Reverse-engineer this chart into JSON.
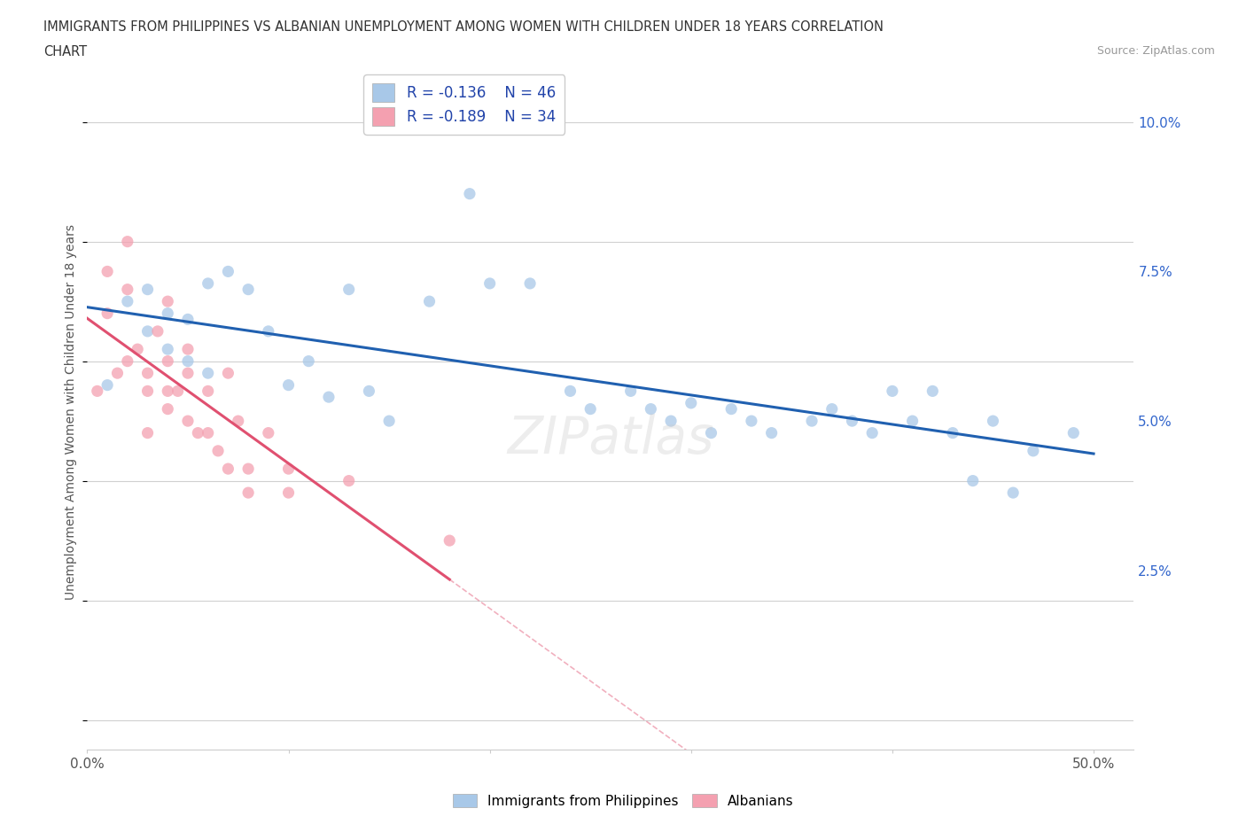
{
  "title_line1": "IMMIGRANTS FROM PHILIPPINES VS ALBANIAN UNEMPLOYMENT AMONG WOMEN WITH CHILDREN UNDER 18 YEARS CORRELATION",
  "title_line2": "CHART",
  "source": "Source: ZipAtlas.com",
  "ylabel": "Unemployment Among Women with Children Under 18 years",
  "xlim": [
    0.0,
    0.52
  ],
  "ylim": [
    -0.005,
    0.108
  ],
  "yticks": [
    0.0,
    0.025,
    0.05,
    0.075,
    0.1
  ],
  "ytick_labels_right": [
    "",
    "2.5%",
    "5.0%",
    "7.5%",
    "10.0%"
  ],
  "xtick_positions": [
    0.0,
    0.1,
    0.2,
    0.3,
    0.4,
    0.5
  ],
  "xtick_labels": [
    "0.0%",
    "",
    "",
    "",
    "",
    "50.0%"
  ],
  "grid_color": "#d0d0d0",
  "background_color": "#ffffff",
  "blue_color": "#a8c8e8",
  "pink_color": "#f4a0b0",
  "blue_line_color": "#2060b0",
  "pink_line_color": "#e05070",
  "legend_R_blue": "R = -0.136",
  "legend_N_blue": "N = 46",
  "legend_R_pink": "R = -0.189",
  "legend_N_pink": "N = 34",
  "legend_label_blue": "Immigrants from Philippines",
  "legend_label_pink": "Albanians",
  "blue_scatter_x": [
    0.01,
    0.02,
    0.03,
    0.03,
    0.04,
    0.04,
    0.05,
    0.05,
    0.06,
    0.06,
    0.07,
    0.08,
    0.09,
    0.1,
    0.11,
    0.12,
    0.13,
    0.14,
    0.15,
    0.17,
    0.19,
    0.2,
    0.22,
    0.24,
    0.25,
    0.27,
    0.28,
    0.29,
    0.3,
    0.31,
    0.32,
    0.33,
    0.34,
    0.36,
    0.37,
    0.38,
    0.39,
    0.4,
    0.41,
    0.42,
    0.43,
    0.44,
    0.45,
    0.46,
    0.47,
    0.49
  ],
  "blue_scatter_y": [
    0.056,
    0.07,
    0.065,
    0.072,
    0.068,
    0.062,
    0.06,
    0.067,
    0.058,
    0.073,
    0.075,
    0.072,
    0.065,
    0.056,
    0.06,
    0.054,
    0.072,
    0.055,
    0.05,
    0.07,
    0.088,
    0.073,
    0.073,
    0.055,
    0.052,
    0.055,
    0.052,
    0.05,
    0.053,
    0.048,
    0.052,
    0.05,
    0.048,
    0.05,
    0.052,
    0.05,
    0.048,
    0.055,
    0.05,
    0.055,
    0.048,
    0.04,
    0.05,
    0.038,
    0.045,
    0.048
  ],
  "pink_scatter_x": [
    0.005,
    0.01,
    0.01,
    0.015,
    0.02,
    0.02,
    0.02,
    0.025,
    0.03,
    0.03,
    0.03,
    0.035,
    0.04,
    0.04,
    0.04,
    0.04,
    0.045,
    0.05,
    0.05,
    0.05,
    0.055,
    0.06,
    0.06,
    0.065,
    0.07,
    0.07,
    0.075,
    0.08,
    0.08,
    0.09,
    0.1,
    0.1,
    0.13,
    0.18
  ],
  "pink_scatter_y": [
    0.055,
    0.075,
    0.068,
    0.058,
    0.08,
    0.06,
    0.072,
    0.062,
    0.058,
    0.055,
    0.048,
    0.065,
    0.07,
    0.06,
    0.055,
    0.052,
    0.055,
    0.058,
    0.05,
    0.062,
    0.048,
    0.055,
    0.048,
    0.045,
    0.058,
    0.042,
    0.05,
    0.042,
    0.038,
    0.048,
    0.042,
    0.038,
    0.04,
    0.03
  ]
}
